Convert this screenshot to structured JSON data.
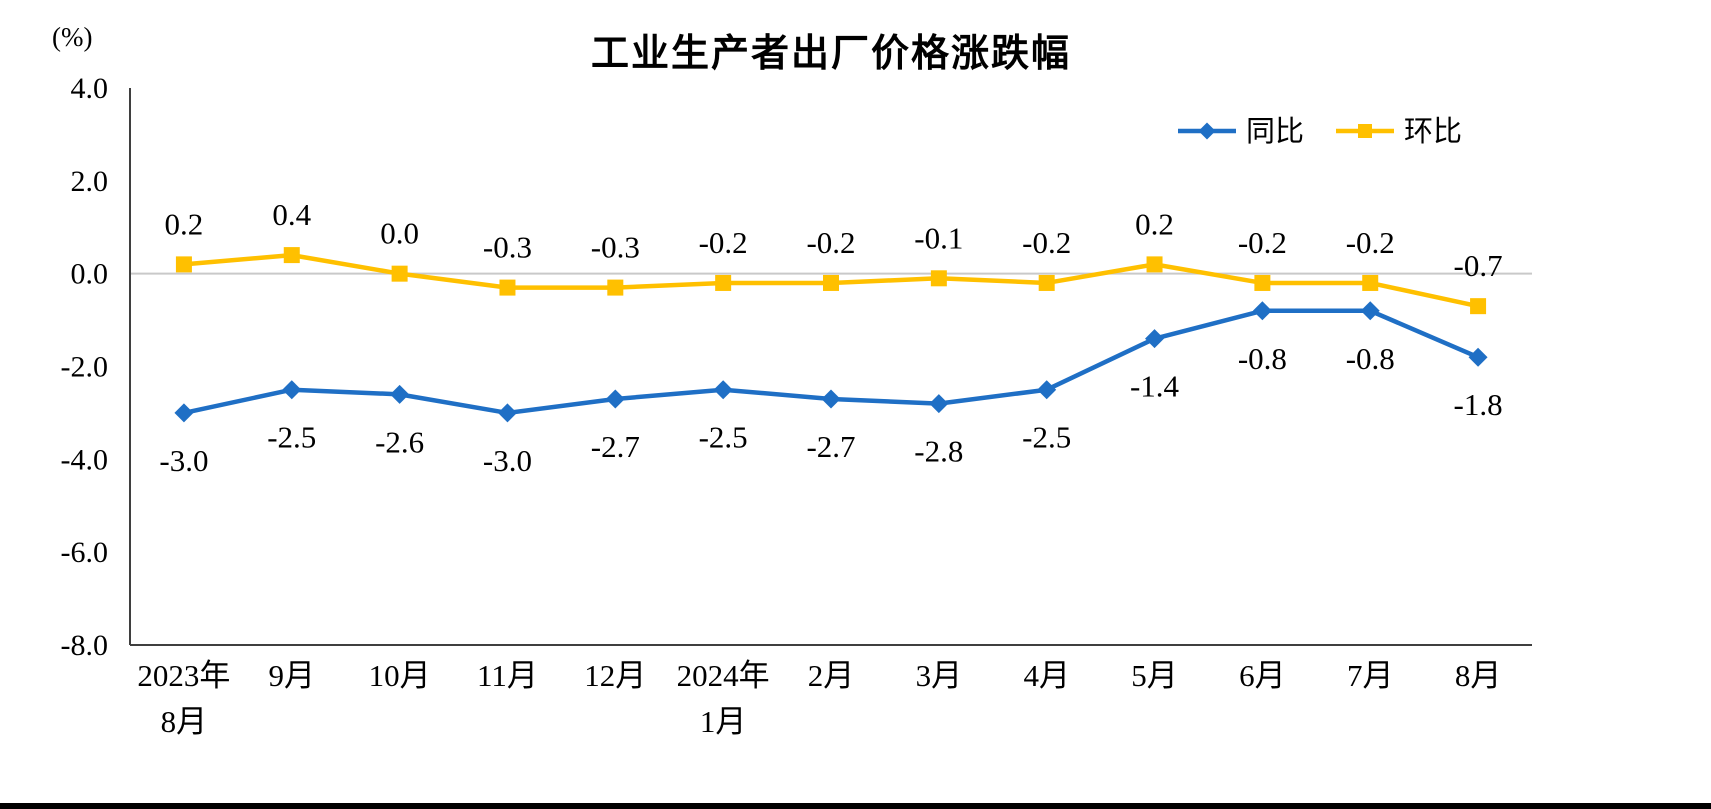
{
  "chart_data": {
    "type": "line",
    "title": "工业生产者出厂价格涨跌幅",
    "unit_label": "(%)",
    "categories": [
      "2023年\n8月",
      "9月",
      "10月",
      "11月",
      "12月",
      "2024年\n1月",
      "2月",
      "3月",
      "4月",
      "5月",
      "6月",
      "7月",
      "8月"
    ],
    "series": [
      {
        "name": "同比",
        "color": "#1F6FC5",
        "marker": "diamond",
        "label_position": "below",
        "values": [
          -3.0,
          -2.5,
          -2.6,
          -3.0,
          -2.7,
          -2.5,
          -2.7,
          -2.8,
          -2.5,
          -1.4,
          -0.8,
          -0.8,
          -1.8
        ]
      },
      {
        "name": "环比",
        "color": "#FFC000",
        "marker": "square",
        "label_position": "above",
        "values": [
          0.2,
          0.4,
          0.0,
          -0.3,
          -0.3,
          -0.2,
          -0.2,
          -0.1,
          -0.2,
          0.2,
          -0.2,
          -0.2,
          -0.7
        ]
      }
    ],
    "ylim": [
      -8.0,
      4.0
    ],
    "yticks": [
      4.0,
      2.0,
      0.0,
      -2.0,
      -4.0,
      -6.0,
      -8.0
    ],
    "grid": "zero-line-only",
    "legend_position": "top-right",
    "colors": {
      "gridline": "#C9C9C9",
      "axis": "#3F3F3F",
      "text": "#000000"
    }
  }
}
